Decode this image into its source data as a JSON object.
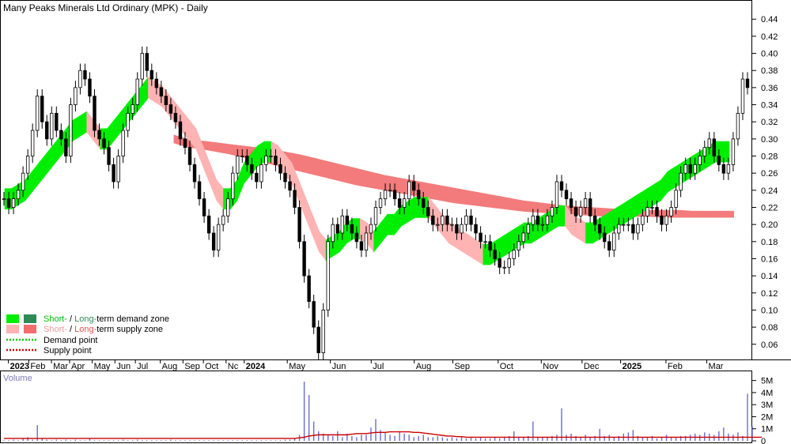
{
  "chart_data": {
    "type": "candlestick",
    "title": "Many Peaks Minerals Ltd Ordinary (MPK) - Daily",
    "volume_label": "Volume",
    "price_axis": {
      "ylim": [
        0.04,
        0.46
      ],
      "ticks": [
        "0.44",
        "0.42",
        "0.40",
        "0.38",
        "0.36",
        "0.34",
        "0.32",
        "0.30",
        "0.28",
        "0.26",
        "0.24",
        "0.22",
        "0.20",
        "0.18",
        "0.16",
        "0.14",
        "0.12",
        "0.10",
        "0.08",
        "0.06"
      ],
      "tick_values": [
        0.44,
        0.42,
        0.4,
        0.38,
        0.36,
        0.34,
        0.32,
        0.3,
        0.28,
        0.26,
        0.24,
        0.22,
        0.2,
        0.18,
        0.16,
        0.14,
        0.12,
        0.1,
        0.08,
        0.06
      ]
    },
    "volume_axis": {
      "ylim": [
        0,
        5.5
      ],
      "ticks": [
        "5M",
        "4M",
        "3M",
        "2M",
        "1M",
        "0"
      ],
      "tick_values": [
        5,
        4,
        3,
        2,
        1,
        0
      ]
    },
    "x_axis": {
      "labels": [
        "2023",
        "Feb",
        "Mar",
        "Apr",
        "May",
        "Jun",
        "Jul",
        "Aug",
        "Sep",
        "Oct",
        "Nc",
        "2024",
        "May",
        "Jun",
        "Jul",
        "Aug",
        "Sep",
        "Oct",
        "Nov",
        "Dec",
        "2025",
        "Feb",
        "Mar"
      ],
      "bold": [
        "2023",
        "2024",
        "2025"
      ],
      "positions_index": [
        3,
        12,
        22,
        30,
        40,
        50,
        59,
        70,
        80,
        89,
        99,
        107,
        126,
        145,
        163,
        182,
        199,
        219,
        238,
        256,
        273,
        293,
        311
      ]
    },
    "legend": [
      {
        "label_short": "Short-",
        "label_rest": " / ",
        "label_long": "Long-",
        "label_tail": "term demand zone",
        "short_color": "#00ee00",
        "long_color": "#2e8b57"
      },
      {
        "label_short": "Short-",
        "label_rest": " / ",
        "label_long": "Long-",
        "label_tail": "term supply zone",
        "short_color": "#ffb3b3",
        "long_color": "#f26d6d"
      },
      {
        "label": "Demand point",
        "color": "#00cc00"
      },
      {
        "label": "Supply point",
        "color": "#dd0000"
      }
    ],
    "closes": [
      0.23,
      0.22,
      0.23,
      0.24,
      0.26,
      0.28,
      0.31,
      0.35,
      0.32,
      0.3,
      0.33,
      0.31,
      0.3,
      0.28,
      0.34,
      0.36,
      0.38,
      0.37,
      0.35,
      0.31,
      0.3,
      0.29,
      0.27,
      0.25,
      0.28,
      0.31,
      0.33,
      0.34,
      0.37,
      0.4,
      0.38,
      0.37,
      0.36,
      0.35,
      0.34,
      0.33,
      0.32,
      0.3,
      0.29,
      0.27,
      0.25,
      0.23,
      0.21,
      0.19,
      0.17,
      0.2,
      0.21,
      0.23,
      0.26,
      0.28,
      0.28,
      0.27,
      0.26,
      0.25,
      0.27,
      0.28,
      0.28,
      0.27,
      0.26,
      0.25,
      0.24,
      0.22,
      0.18,
      0.14,
      0.11,
      0.08,
      0.05,
      0.1,
      0.18,
      0.2,
      0.19,
      0.21,
      0.2,
      0.19,
      0.18,
      0.17,
      0.19,
      0.2,
      0.22,
      0.23,
      0.24,
      0.24,
      0.23,
      0.22,
      0.23,
      0.25,
      0.24,
      0.23,
      0.22,
      0.21,
      0.2,
      0.2,
      0.21,
      0.2,
      0.2,
      0.19,
      0.2,
      0.21,
      0.2,
      0.19,
      0.18,
      0.18,
      0.17,
      0.16,
      0.15,
      0.15,
      0.16,
      0.17,
      0.18,
      0.19,
      0.2,
      0.21,
      0.2,
      0.2,
      0.21,
      0.22,
      0.25,
      0.24,
      0.23,
      0.22,
      0.21,
      0.22,
      0.23,
      0.21,
      0.2,
      0.19,
      0.18,
      0.17,
      0.19,
      0.2,
      0.2,
      0.2,
      0.19,
      0.2,
      0.21,
      0.22,
      0.22,
      0.21,
      0.2,
      0.21,
      0.22,
      0.24,
      0.26,
      0.27,
      0.26,
      0.27,
      0.28,
      0.29,
      0.3,
      0.28,
      0.27,
      0.26,
      0.27,
      0.3,
      0.33,
      0.37,
      0.36
    ],
    "volumes": [
      0.05,
      0.05,
      0.1,
      0.05,
      0.2,
      0.3,
      0.1,
      1.3,
      0.2,
      0.1,
      0.05,
      0.1,
      0.05,
      0.1,
      0.05,
      0.1,
      0.05,
      0.05,
      0.2,
      0.05,
      0.05,
      0.05,
      0.05,
      0.05,
      0.05,
      0.1,
      0.05,
      0.05,
      0.1,
      0.05,
      0.05,
      0.05,
      0.05,
      0.05,
      0.05,
      0.1,
      0.05,
      0.05,
      0.05,
      0.05,
      0.05,
      0.05,
      0.05,
      0.05,
      0.05,
      0.05,
      0.05,
      0.05,
      0.05,
      0.05,
      0.05,
      0.05,
      0.05,
      0.05,
      0.05,
      0.05,
      0.05,
      0.05,
      0.05,
      0.1,
      0.1,
      0.2,
      0.5,
      4.9,
      3.8,
      1.6,
      0.8,
      0.6,
      0.5,
      0.4,
      0.8,
      0.3,
      0.6,
      0.4,
      0.3,
      0.5,
      0.5,
      1.1,
      1.8,
      0.9,
      0.7,
      0.5,
      0.4,
      0.8,
      0.6,
      0.5,
      0.3,
      0.4,
      0.5,
      0.3,
      0.3,
      0.4,
      0.3,
      0.2,
      0.3,
      0.2,
      0.3,
      0.2,
      0.3,
      0.2,
      0.3,
      0.2,
      0.2,
      0.3,
      0.2,
      0.3,
      0.4,
      0.8,
      0.3,
      0.3,
      0.4,
      1.6,
      0.3,
      0.3,
      0.3,
      0.4,
      0.5,
      2.7,
      0.5,
      0.6,
      0.4,
      0.3,
      0.5,
      0.3,
      0.4,
      1.0,
      0.4,
      0.5,
      0.3,
      0.4,
      0.6,
      0.7,
      0.9,
      0.4,
      0.3,
      0.3,
      0.4,
      0.2,
      0.3,
      0.5,
      0.3,
      0.3,
      0.4,
      0.4,
      0.5,
      0.6,
      0.5,
      0.7,
      0.6,
      0.5,
      0.8,
      1.1,
      0.6,
      0.5,
      0.7,
      0.4,
      3.9,
      1.2
    ],
    "volume_average": [
      0.2,
      0.2,
      0.2,
      0.2,
      0.2,
      0.2,
      0.2,
      0.2,
      0.2,
      0.2,
      0.2,
      0.2,
      0.2,
      0.2,
      0.2,
      0.2,
      0.2,
      0.2,
      0.2,
      0.2,
      0.2,
      0.2,
      0.2,
      0.2,
      0.2,
      0.2,
      0.2,
      0.2,
      0.2,
      0.2,
      0.2,
      0.2,
      0.2,
      0.2,
      0.2,
      0.2,
      0.2,
      0.2,
      0.2,
      0.2,
      0.2,
      0.2,
      0.2,
      0.2,
      0.2,
      0.2,
      0.2,
      0.2,
      0.2,
      0.2,
      0.2,
      0.2,
      0.2,
      0.2,
      0.2,
      0.2,
      0.2,
      0.2,
      0.2,
      0.2,
      0.2,
      0.2,
      0.25,
      0.3,
      0.4,
      0.45,
      0.5,
      0.5,
      0.5,
      0.5,
      0.5,
      0.5,
      0.5,
      0.55,
      0.6,
      0.6,
      0.6,
      0.65,
      0.7,
      0.7,
      0.7,
      0.75,
      0.75,
      0.75,
      0.75,
      0.75,
      0.7,
      0.7,
      0.65,
      0.6,
      0.55,
      0.5,
      0.45,
      0.4,
      0.4,
      0.35,
      0.35,
      0.3,
      0.3,
      0.3,
      0.3,
      0.3,
      0.3,
      0.3,
      0.3,
      0.3,
      0.3,
      0.3,
      0.3,
      0.3,
      0.3,
      0.3,
      0.3,
      0.3,
      0.3,
      0.3,
      0.3,
      0.3,
      0.3,
      0.3,
      0.3,
      0.3,
      0.3,
      0.3,
      0.3,
      0.3,
      0.3,
      0.3,
      0.3,
      0.3,
      0.3,
      0.3,
      0.3,
      0.3,
      0.3,
      0.3,
      0.3,
      0.3,
      0.3,
      0.3,
      0.3,
      0.3,
      0.3,
      0.3,
      0.3,
      0.3,
      0.3,
      0.3,
      0.3,
      0.3,
      0.3,
      0.3,
      0.3,
      0.3,
      0.3,
      0.3,
      0.3,
      0.3,
      0.3,
      0.3
    ],
    "short_zone": [
      0.23,
      0.23,
      0.235,
      0.24,
      0.25,
      0.26,
      0.27,
      0.28,
      0.29,
      0.3,
      0.31,
      0.315,
      0.32,
      0.31,
      0.3,
      0.3,
      0.31,
      0.32,
      0.33,
      0.34,
      0.35,
      0.36,
      0.355,
      0.35,
      0.34,
      0.33,
      0.32,
      0.31,
      0.3,
      0.28,
      0.26,
      0.24,
      0.23,
      0.23,
      0.24,
      0.26,
      0.27,
      0.28,
      0.285,
      0.285,
      0.28,
      0.27,
      0.26,
      0.24,
      0.22,
      0.2,
      0.18,
      0.17,
      0.175,
      0.18,
      0.19,
      0.195,
      0.195,
      0.19,
      0.18,
      0.19,
      0.2,
      0.2,
      0.21,
      0.215,
      0.22,
      0.22,
      0.22,
      0.21,
      0.2,
      0.19,
      0.185,
      0.18,
      0.175,
      0.17,
      0.165,
      0.165,
      0.17,
      0.175,
      0.18,
      0.185,
      0.19,
      0.19,
      0.195,
      0.2,
      0.205,
      0.21,
      0.21,
      0.2,
      0.195,
      0.19,
      0.19,
      0.195,
      0.2,
      0.205,
      0.21,
      0.215,
      0.22,
      0.225,
      0.23,
      0.235,
      0.24,
      0.25,
      0.255,
      0.26,
      0.265,
      0.27,
      0.275,
      0.28,
      0.285,
      0.285,
      0.285
    ],
    "long_zone_top": [
      0.305,
      0.3,
      0.298,
      0.296,
      0.294,
      0.292,
      0.29,
      0.288,
      0.285,
      0.282,
      0.278,
      0.274,
      0.27,
      0.266,
      0.262,
      0.258,
      0.255,
      0.252,
      0.249,
      0.246,
      0.243,
      0.24,
      0.237,
      0.234,
      0.231,
      0.228,
      0.226,
      0.224,
      0.222,
      0.221,
      0.22,
      0.219,
      0.218,
      0.218,
      0.217,
      0.217,
      0.217,
      0.216,
      0.216,
      0.216,
      0.216
    ],
    "long_zone_bottom": [
      0.295,
      0.29,
      0.288,
      0.285,
      0.282,
      0.278,
      0.274,
      0.27,
      0.266,
      0.262,
      0.258,
      0.254,
      0.25,
      0.246,
      0.243,
      0.24,
      0.237,
      0.234,
      0.231,
      0.228,
      0.225,
      0.223,
      0.221,
      0.219,
      0.217,
      0.215,
      0.214,
      0.213,
      0.212,
      0.211,
      0.21,
      0.209,
      0.209,
      0.209,
      0.209,
      0.208,
      0.208,
      0.208,
      0.208,
      0.208,
      0.208
    ]
  }
}
